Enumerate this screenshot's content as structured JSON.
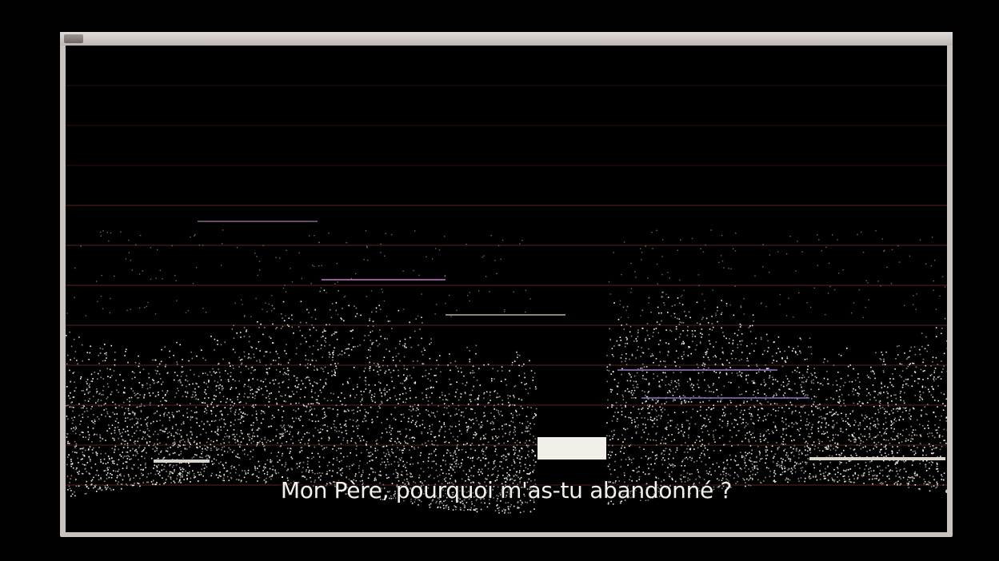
{
  "window": {
    "title": ""
  },
  "subtitle": "Mon Père, pourquoi m'as-tu abandonné ?",
  "colors": {
    "background": "#000000",
    "window_frame": "#c9c2bf",
    "graticule": "#5a1f1f",
    "trace": "#ece9e0",
    "subtitle": "#f4f1ea"
  }
}
